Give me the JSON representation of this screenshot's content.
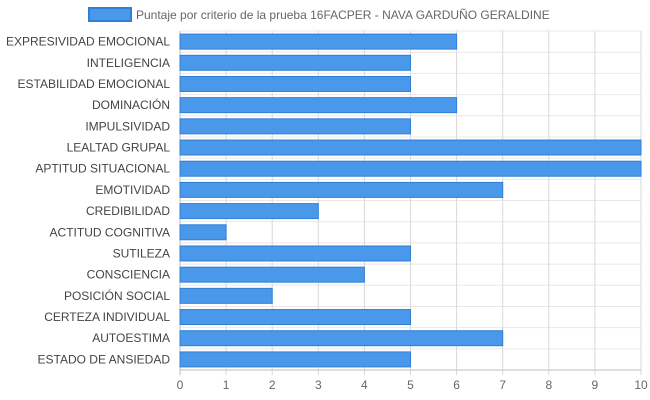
{
  "chart_data": {
    "type": "bar",
    "orientation": "horizontal",
    "legend": {
      "position": "top"
    },
    "grid": true,
    "xlim": [
      0,
      10
    ],
    "x_ticks": [
      "0",
      "1",
      "2",
      "3",
      "4",
      "5",
      "6",
      "7",
      "8",
      "9",
      "10"
    ],
    "categories": [
      "EXPRESIVIDAD EMOCIONAL",
      "INTELIGENCIA",
      "ESTABILIDAD EMOCIONAL",
      "DOMINACIÓN",
      "IMPULSIVIDAD",
      "LEALTAD GRUPAL",
      "APTITUD SITUACIONAL",
      "EMOTIVIDAD",
      "CREDIBILIDAD",
      "ACTITUD COGNITIVA",
      "SUTILEZA",
      "CONSCIENCIA",
      "POSICIÓN SOCIAL",
      "CERTEZA INDIVIDUAL",
      "AUTOESTIMA",
      "ESTADO DE ANSIEDAD"
    ],
    "series": [
      {
        "name": "Puntaje por criterio de la prueba 16FACPER - NAVA GARDUÑO GERALDINE",
        "color": "#4a98ea",
        "border_color": "#2f7fd8",
        "values": [
          6,
          5,
          5,
          6,
          5,
          10,
          10,
          7,
          3,
          1,
          5,
          4,
          2,
          5,
          7,
          5
        ]
      }
    ]
  }
}
